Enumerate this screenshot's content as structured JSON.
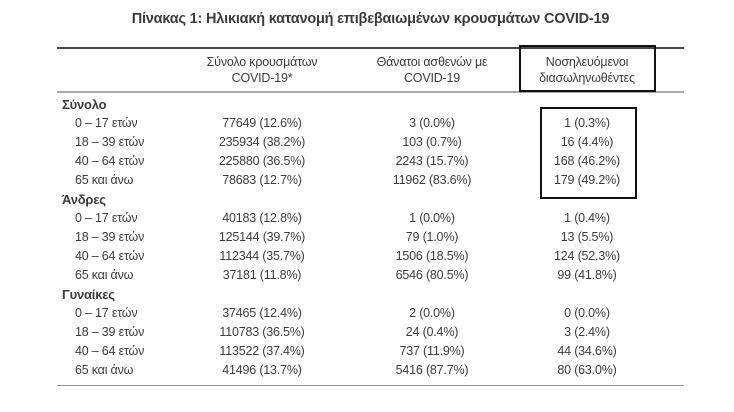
{
  "title": "Πίνακας 1: Ηλικιακή κατανομή επιβεβαιωμένων κρουσμάτων COVID-19",
  "colors": {
    "background": "#ffffff",
    "text": "#3b3b3d",
    "rule_top": "#48484a",
    "rule_header": "#a8a8a8",
    "rule_bottom": "#8f8f8f",
    "highlight_box": "#111111"
  },
  "table": {
    "columns": [
      {
        "line1": "",
        "line2": ""
      },
      {
        "line1": "Σύνολο κρουσμάτων",
        "line2": "COVID-19*"
      },
      {
        "line1": "Θάνατοι ασθενών με",
        "line2": "COVID-19"
      },
      {
        "line1": "Νοσηλευόμενοι",
        "line2": "διασωληνωθέντες",
        "highlighted": true
      }
    ],
    "sections": [
      {
        "name": "Σύνολο",
        "rows": [
          {
            "label": "0 – 17 ετών",
            "cases": "77649 (12.6%)",
            "deaths": "3 (0.0%)",
            "intubated": "1 (0.3%)"
          },
          {
            "label": "18 – 39 ετών",
            "cases": "235934 (38.2%)",
            "deaths": "103 (0.7%)",
            "intubated": "16 (4.4%)"
          },
          {
            "label": "40 – 64 ετών",
            "cases": "225880 (36.5%)",
            "deaths": "2243 (15.7%)",
            "intubated": "168 (46.2%)"
          },
          {
            "label": "65 και άνω",
            "cases": "78683 (12.7%)",
            "deaths": "11962 (83.6%)",
            "intubated": "179 (49.2%)"
          }
        ]
      },
      {
        "name": "Άνδρες",
        "rows": [
          {
            "label": "0 – 17 ετών",
            "cases": "40183 (12.8%)",
            "deaths": "1 (0.0%)",
            "intubated": "1 (0.4%)"
          },
          {
            "label": "18 – 39 ετών",
            "cases": "125144 (39.7%)",
            "deaths": "79 (1.0%)",
            "intubated": "13 (5.5%)"
          },
          {
            "label": "40 – 64 ετών",
            "cases": "112344 (35.7%)",
            "deaths": "1506 (18.5%)",
            "intubated": "124 (52.3%)"
          },
          {
            "label": "65 και άνω",
            "cases": "37181 (11.8%)",
            "deaths": "6546 (80.5%)",
            "intubated": "99 (41.8%)"
          }
        ]
      },
      {
        "name": "Γυναίκες",
        "rows": [
          {
            "label": "0 – 17 ετών",
            "cases": "37465 (12.4%)",
            "deaths": "2 (0.0%)",
            "intubated": "0 (0.0%)"
          },
          {
            "label": "18 – 39 ετών",
            "cases": "110783 (36.5%)",
            "deaths": "24 (0.4%)",
            "intubated": "3 (2.4%)"
          },
          {
            "label": "40 – 64 ετών",
            "cases": "113522 (37.4%)",
            "deaths": "737 (11.9%)",
            "intubated": "44 (34.6%)"
          },
          {
            "label": "65 και άνω",
            "cases": "41496 (13.7%)",
            "deaths": "5416 (87.7%)",
            "intubated": "80 (63.0%)"
          }
        ]
      }
    ]
  }
}
